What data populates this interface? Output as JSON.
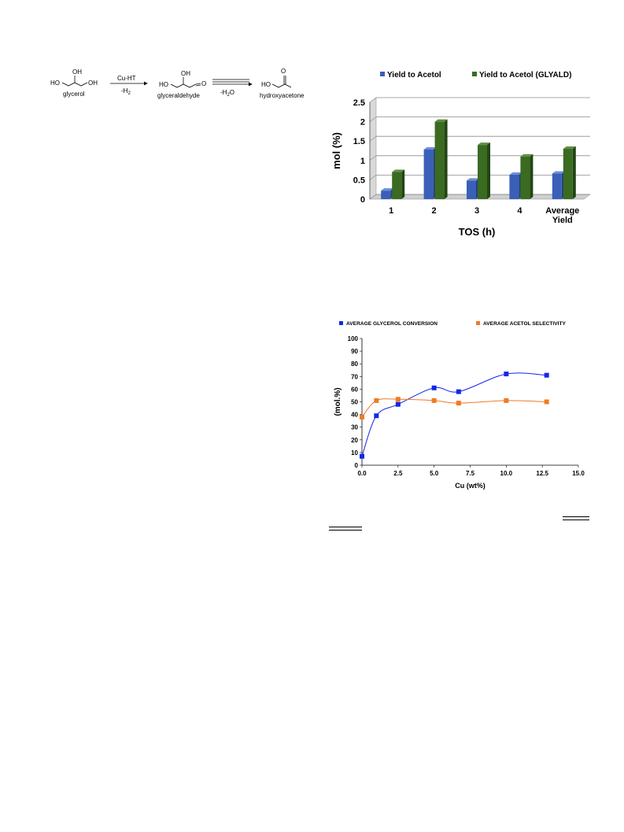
{
  "scheme": {
    "glycerol": {
      "oh_top": "OH",
      "ho_left": "HO",
      "oh_right": "OH",
      "name": "glycerol"
    },
    "step1": {
      "reagent": "Cu-HT",
      "loss": "-H",
      "loss_sub": "2"
    },
    "glyceraldehyde": {
      "oh_top": "OH",
      "ho_left": "HO",
      "o_right": "O",
      "name": "glyceraldehyde"
    },
    "step2": {
      "loss": "-H",
      "loss_sub": "2",
      "loss_tail": "O"
    },
    "hydroxyacetone": {
      "o_top": "O",
      "ho_left": "HO",
      "name": "hydroxyacetone"
    }
  },
  "chart_data": [
    {
      "type": "bar",
      "categories": [
        "1",
        "2",
        "3",
        "4",
        "Average Yield"
      ],
      "series": [
        {
          "name": "Yield to Acetol",
          "values": [
            0.22,
            1.28,
            0.48,
            0.63,
            0.66
          ],
          "color": "#3a5fb8"
        },
        {
          "name": "Yield to Acetol (GLYALD)",
          "values": [
            0.7,
            2.0,
            1.4,
            1.1,
            1.3
          ],
          "color": "#3a6b21"
        }
      ],
      "xlabel": "TOS (h)",
      "ylabel": "mol (%)",
      "ylim": [
        0,
        2.5
      ],
      "yticks": [
        "0",
        "0.5",
        "1",
        "1.5",
        "2",
        "2.5"
      ],
      "grid": true,
      "legend": "top",
      "style": "3d"
    },
    {
      "type": "scatter",
      "series": [
        {
          "name": "AVERAGE GLYCEROL CONVERSION",
          "color": "#1428e6",
          "x": [
            0.0,
            1.0,
            2.5,
            5.0,
            6.7,
            10.0,
            12.8
          ],
          "y": [
            7,
            39,
            48,
            61,
            58,
            72,
            71
          ]
        },
        {
          "name": "AVERAGE ACETOL SELECTIVITY",
          "color": "#f07a22",
          "x": [
            0.0,
            1.0,
            2.5,
            5.0,
            6.7,
            10.0,
            12.8
          ],
          "y": [
            38,
            51,
            52,
            51,
            49,
            51,
            50
          ]
        }
      ],
      "xlabel": "Cu (wt%)",
      "ylabel": "(mol.%)",
      "xlim": [
        0,
        15
      ],
      "ylim": [
        0,
        100
      ],
      "xticks": [
        "0.0",
        "2.5",
        "5.0",
        "7.5",
        "10.0",
        "12.5",
        "15.0"
      ],
      "yticks": [
        "0",
        "10",
        "20",
        "30",
        "40",
        "50",
        "60",
        "70",
        "80",
        "90",
        "100"
      ],
      "trendlines": true,
      "legend": "top"
    }
  ]
}
